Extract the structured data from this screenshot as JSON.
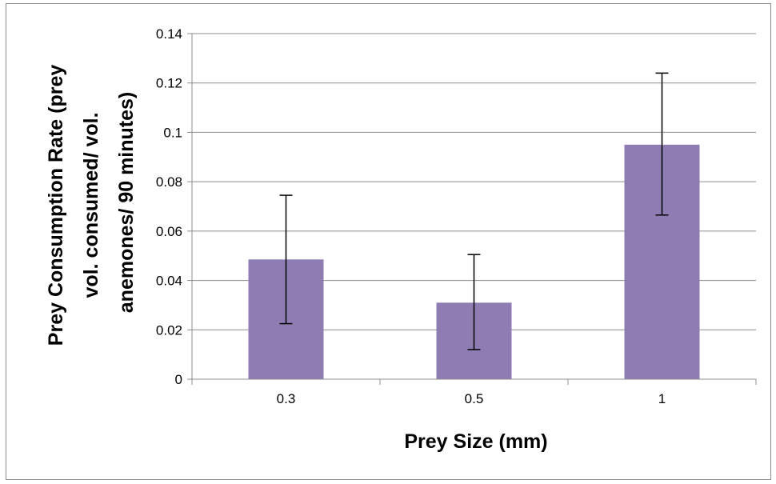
{
  "chart_data": {
    "type": "bar",
    "title": "",
    "xlabel": "Prey Size (mm)",
    "ylabel_lines": [
      "Prey Consumption Rate (prey",
      "vol. consumed/ vol.",
      "anemones/ 90 minutes)"
    ],
    "categories": [
      "0.3",
      "0.5",
      "1"
    ],
    "values": [
      0.0485,
      0.031,
      0.095
    ],
    "error_low": [
      0.0225,
      0.012,
      0.0665
    ],
    "error_high": [
      0.0745,
      0.0505,
      0.124
    ],
    "ylim": [
      0,
      0.14
    ],
    "y_ticks": [
      0,
      0.02,
      0.04,
      0.06,
      0.08,
      0.1,
      0.12,
      0.14
    ],
    "y_tick_labels": [
      "0",
      "0.02",
      "0.04",
      "0.06",
      "0.08",
      "0.1",
      "0.12",
      "0.14"
    ],
    "grid": true,
    "legend": "none",
    "bar_color": "#8e7cb2",
    "grid_color": "#8c8c8c",
    "error_bar_color": "#000000"
  }
}
